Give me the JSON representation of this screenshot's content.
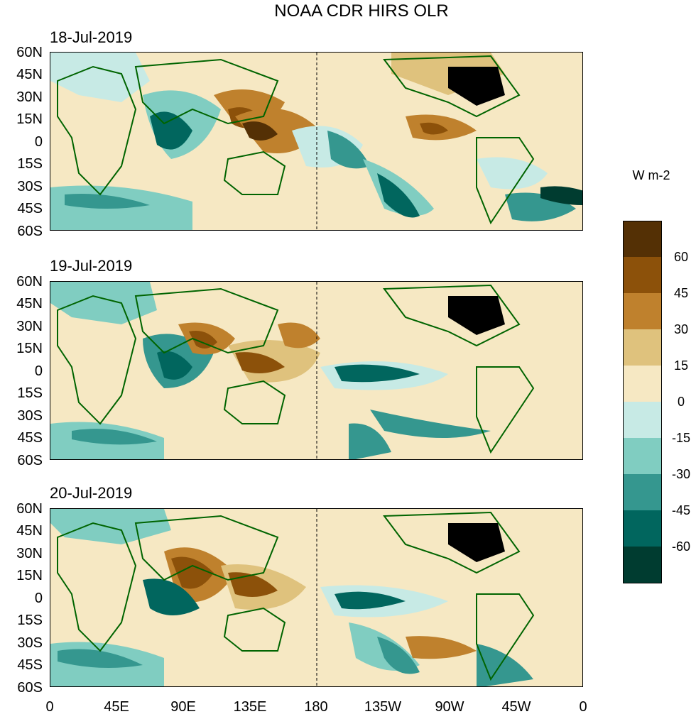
{
  "title": "NOAA CDR HIRS OLR",
  "panels": [
    {
      "date": "18-Jul-2019"
    },
    {
      "date": "19-Jul-2019"
    },
    {
      "date": "20-Jul-2019"
    }
  ],
  "lat_labels": [
    "60N",
    "45N",
    "30N",
    "15N",
    "0",
    "15S",
    "30S",
    "45S",
    "60S"
  ],
  "lon_labels": [
    "0",
    "45E",
    "90E",
    "135E",
    "180",
    "135W",
    "90W",
    "45W",
    "0"
  ],
  "colorbar": {
    "units": "W m-2",
    "labels": [
      "60",
      "45",
      "30",
      "15",
      "0",
      "-15",
      "-30",
      "-45",
      "-60"
    ],
    "colors": [
      "#543005",
      "#8c510a",
      "#bf812d",
      "#dfc27d",
      "#f6e8c3",
      "#c7eae5",
      "#80cdc1",
      "#35978f",
      "#01665e",
      "#003c30"
    ]
  },
  "colors": {
    "land_outline": "#006400"
  }
}
